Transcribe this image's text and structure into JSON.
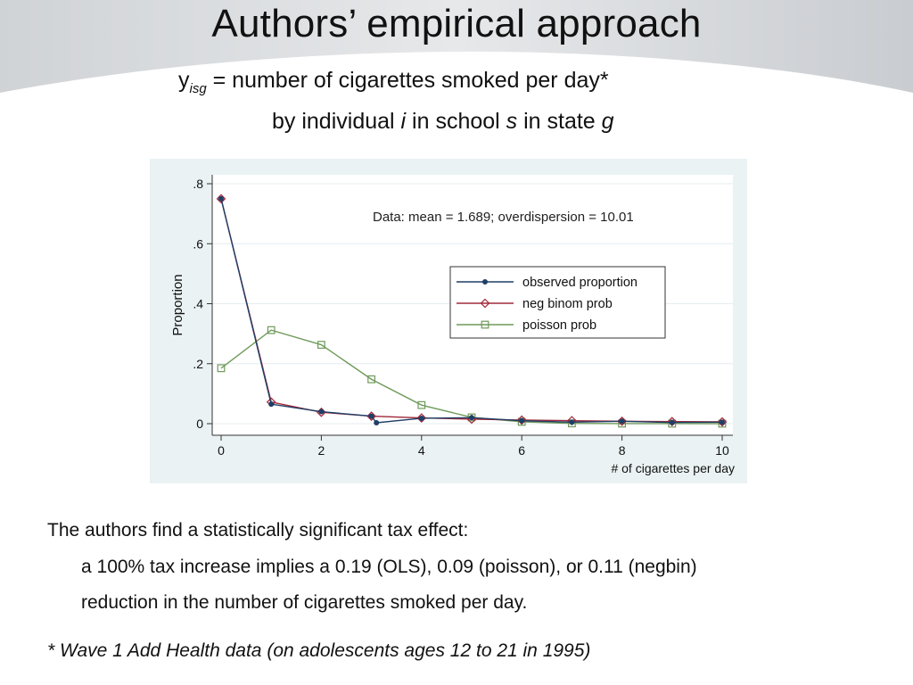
{
  "slide": {
    "title": "Authors’ empirical approach",
    "equation": {
      "var": "y",
      "subscript": "isg",
      "text1": " = number of cigarettes smoked per day*",
      "text2a": "by individual ",
      "i": "i",
      "text2b": " in school ",
      "s": "s",
      "text2c": " in state ",
      "g": "g"
    },
    "finding_intro": "The authors find a statistically significant tax effect:",
    "finding_line1": "a 100% tax increase implies a 0.19 (OLS), 0.09 (poisson), or 0.11 (negbin)",
    "finding_line2": "reduction in the number of cigarettes smoked per day.",
    "footnote": "* Wave 1 Add Health data (on adolescents ages 12 to 21 in 1995)"
  },
  "chart_data": {
    "type": "line",
    "xlabel": "# of cigarettes per day",
    "ylabel": "Proportion",
    "annotation": "Data:  mean = 1.689; overdispersion = 10.01",
    "xlim": [
      0,
      10
    ],
    "ylim": [
      0,
      0.8
    ],
    "x_ticks": [
      0,
      2,
      4,
      6,
      8,
      10
    ],
    "y_ticks": [
      0,
      0.2,
      0.4,
      0.6,
      0.8
    ],
    "x_tick_labels": [
      "0",
      "2",
      "4",
      "6",
      "8",
      "10"
    ],
    "y_tick_labels": [
      "0",
      ".2",
      ".4",
      ".6",
      ".8"
    ],
    "grid": "horizontal",
    "legend_position": "right",
    "series": [
      {
        "name": "observed proportion",
        "marker": "dot",
        "color": "#1f3f66",
        "x": [
          0,
          1,
          2,
          3,
          3.1,
          4,
          5,
          6,
          7,
          8,
          9,
          10
        ],
        "y": [
          0.75,
          0.065,
          0.04,
          0.025,
          0.003,
          0.018,
          0.02,
          0.01,
          0.005,
          0.008,
          0.004,
          0.005
        ]
      },
      {
        "name": "neg binom prob",
        "marker": "diamond",
        "color": "#a0283a",
        "x": [
          0,
          1,
          2,
          3,
          4,
          5,
          6,
          7,
          8,
          9,
          10
        ],
        "y": [
          0.75,
          0.072,
          0.038,
          0.025,
          0.019,
          0.015,
          0.012,
          0.01,
          0.008,
          0.007,
          0.006
        ]
      },
      {
        "name": "poisson prob",
        "marker": "square",
        "color": "#6f9a5a",
        "x": [
          0,
          1,
          2,
          3,
          4,
          5,
          6,
          7,
          8,
          9,
          10
        ],
        "y": [
          0.185,
          0.312,
          0.263,
          0.148,
          0.062,
          0.021,
          0.006,
          0.001,
          0.0003,
          0.0001,
          0.0
        ]
      }
    ]
  }
}
